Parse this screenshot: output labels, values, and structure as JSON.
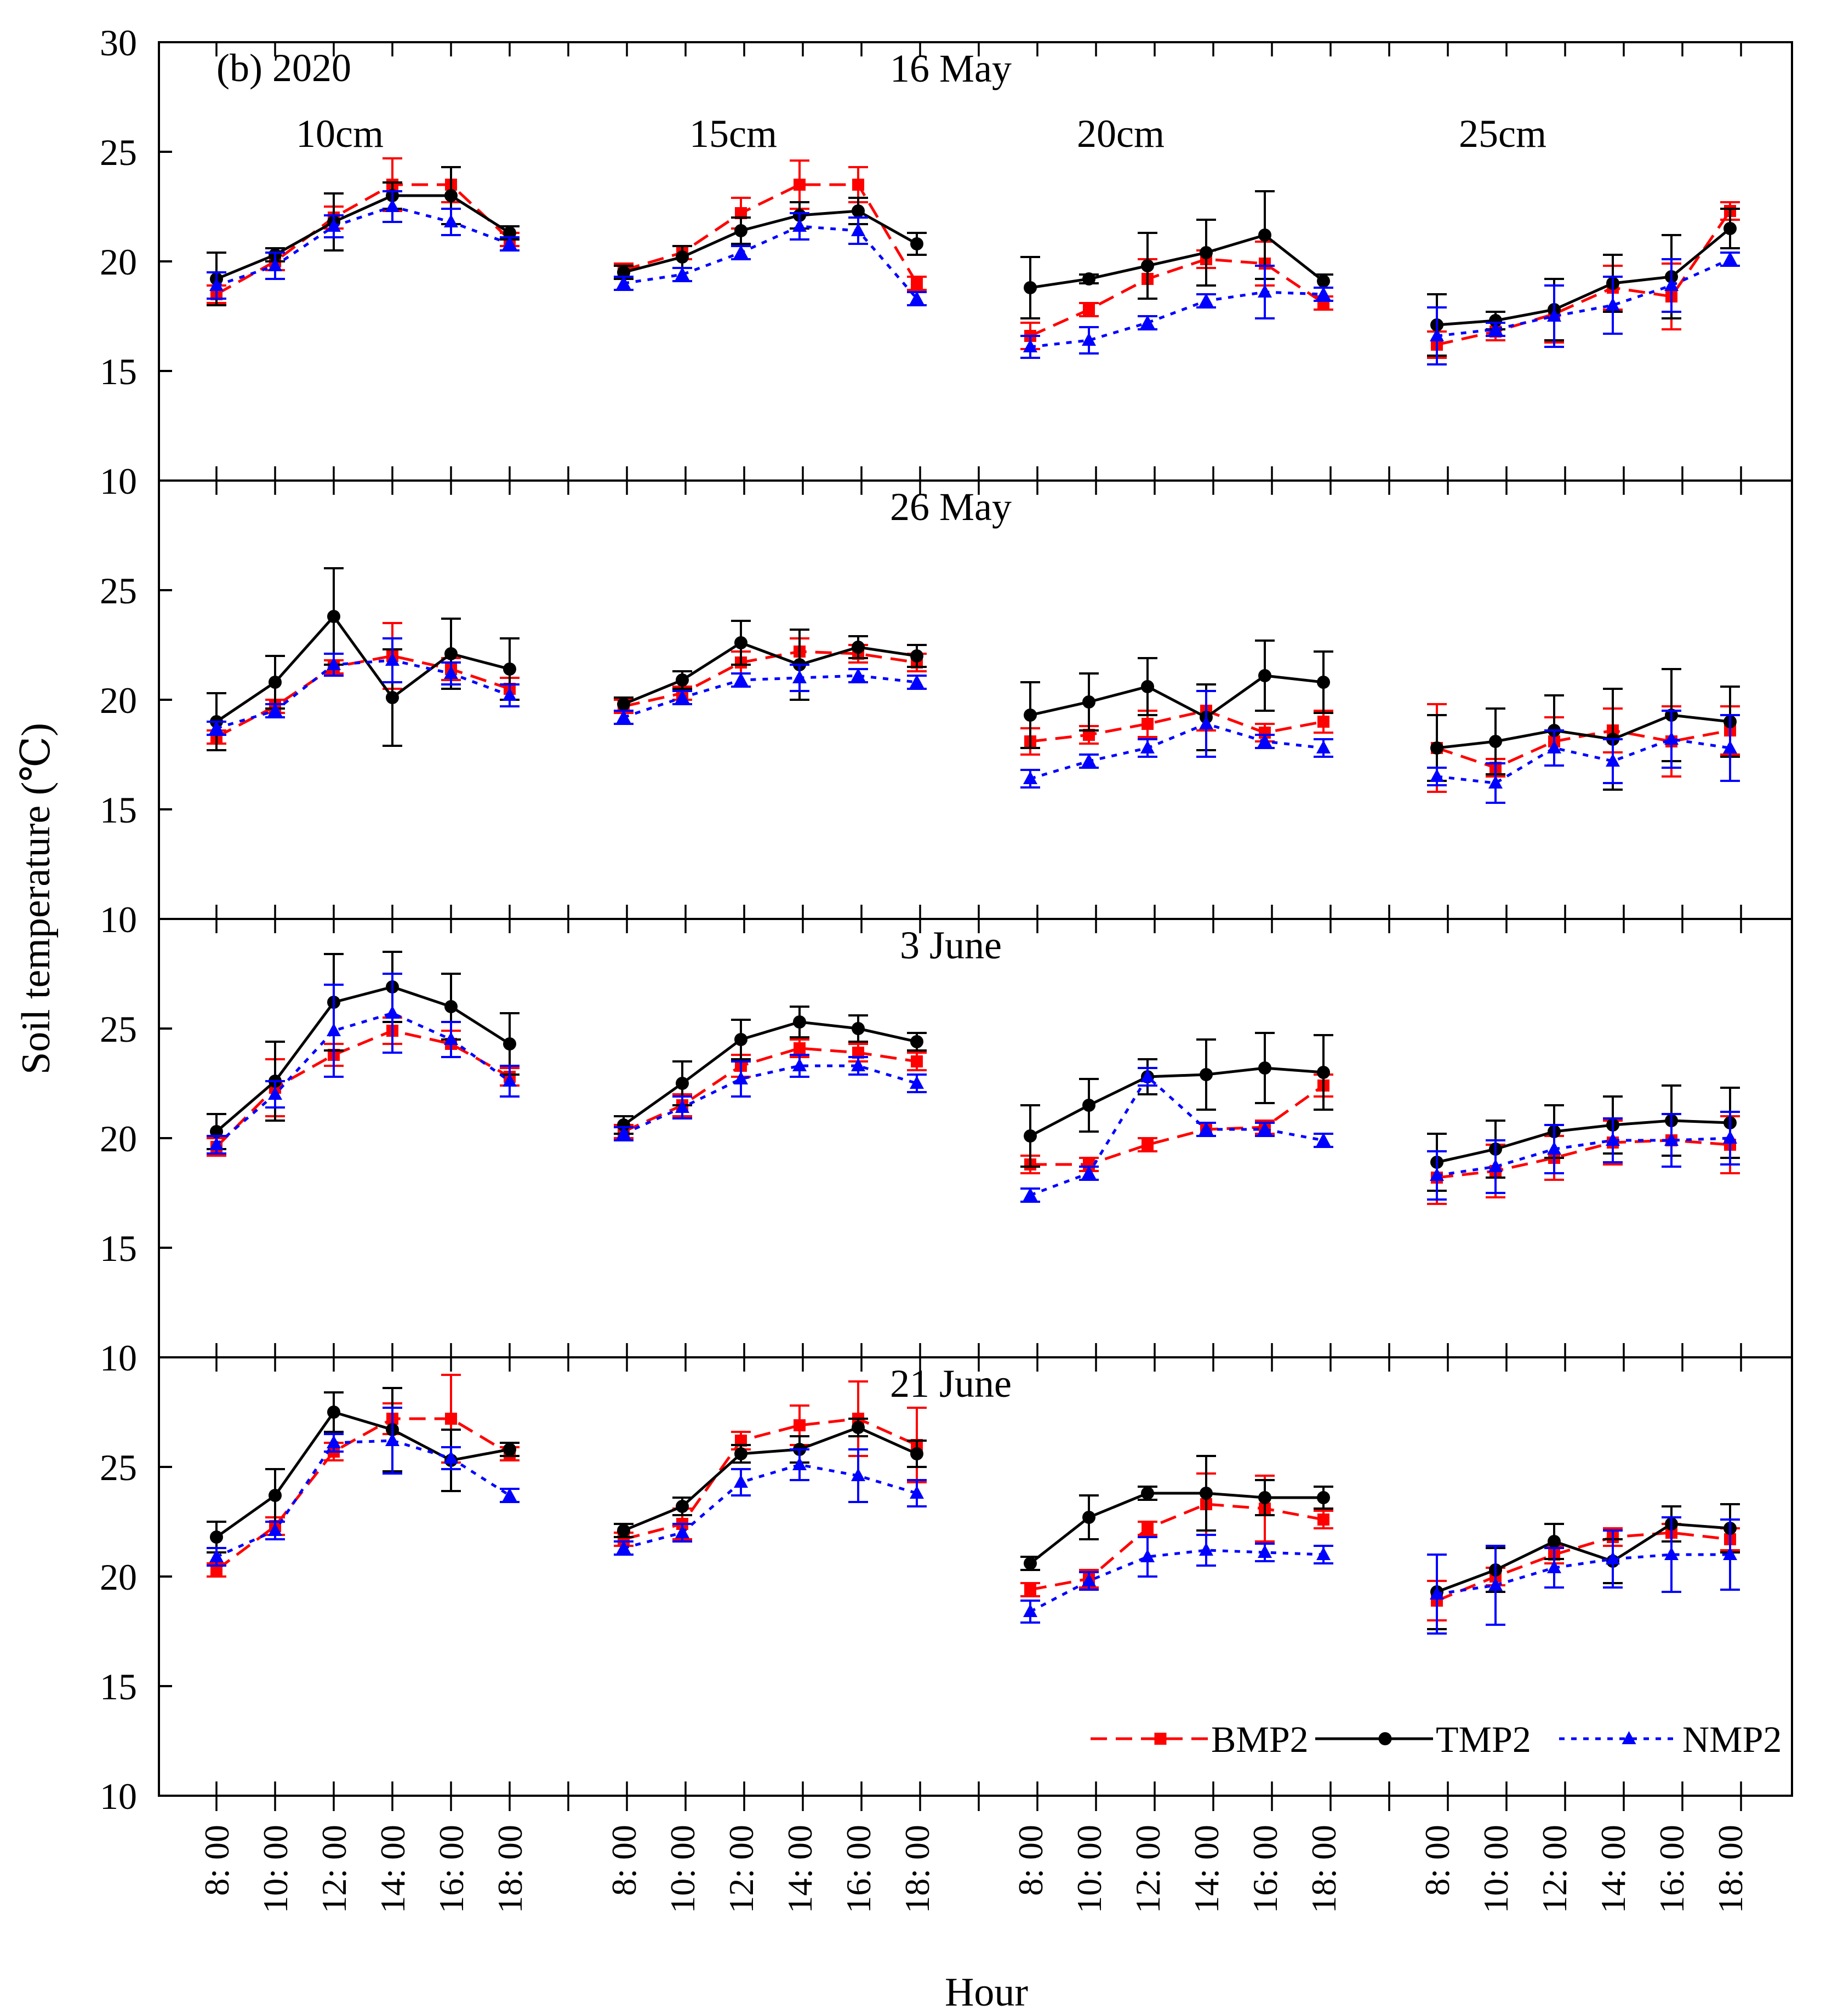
{
  "chart_data": {
    "type": "line",
    "figure_label": "(b) 2020",
    "ylabel": "Soil temperature (℃)",
    "xlabel": "Hour",
    "ylim": [
      10,
      30
    ],
    "y_ticks": [
      10,
      15,
      20,
      25,
      30
    ],
    "time_labels": [
      "8: 00",
      "10: 00",
      "12: 00",
      "14: 00",
      "16: 00",
      "18: 00"
    ],
    "depths": [
      "10cm",
      "15cm",
      "20cm",
      "25cm"
    ],
    "colors": {
      "BMP2": "#ff0000",
      "TMP2": "#000000",
      "NMP2": "#0000ff"
    },
    "legend": [
      {
        "name": "BMP2",
        "label": "BMP2"
      },
      {
        "name": "TMP2",
        "label": "TMP2"
      },
      {
        "name": "NMP2",
        "label": "NMP2"
      }
    ],
    "panels": [
      {
        "date": "16 May",
        "series": {
          "BMP2": [
            [
              18.5,
              20.0,
              22.0,
              23.5,
              23.5,
              21.0
            ],
            [
              19.6,
              20.4,
              22.2,
              23.5,
              23.5,
              19.0
            ],
            [
              16.6,
              17.8,
              19.2,
              20.1,
              19.9,
              18.1
            ],
            [
              16.2,
              16.8,
              17.6,
              18.8,
              18.4,
              22.3
            ]
          ],
          "TMP2": [
            [
              19.2,
              20.3,
              21.8,
              23.0,
              23.0,
              21.3
            ],
            [
              19.5,
              20.2,
              21.4,
              22.1,
              22.3,
              20.8
            ],
            [
              18.8,
              19.2,
              19.8,
              20.4,
              21.2,
              19.1
            ],
            [
              17.1,
              17.3,
              17.8,
              19.0,
              19.3,
              21.5
            ]
          ],
          "NMP2": [
            [
              18.9,
              19.8,
              21.6,
              22.5,
              21.8,
              20.8
            ],
            [
              19.0,
              19.4,
              20.4,
              21.6,
              21.4,
              18.3
            ],
            [
              16.1,
              16.4,
              17.2,
              18.2,
              18.6,
              18.5
            ],
            [
              16.6,
              16.9,
              17.5,
              18.0,
              18.9,
              20.1
            ]
          ]
        },
        "errors": {
          "BMP2": [
            [
              0.4,
              0.4,
              0.5,
              1.2,
              0.8,
              0.3
            ],
            [
              0.3,
              0.3,
              0.7,
              1.1,
              0.8,
              0.3
            ],
            [
              0.6,
              0.3,
              0.9,
              0.4,
              1.0,
              0.3
            ],
            [
              0.6,
              0.4,
              1.3,
              1.0,
              1.5,
              0.4
            ]
          ],
          "TMP2": [
            [
              1.2,
              0.3,
              1.3,
              0.6,
              1.3,
              0.3
            ],
            [
              0.3,
              0.5,
              0.6,
              0.6,
              0.6,
              0.5
            ],
            [
              1.4,
              0.2,
              1.5,
              1.5,
              2.0,
              0.3
            ],
            [
              1.4,
              0.4,
              1.4,
              1.3,
              1.9,
              0.9
            ]
          ],
          "NMP2": [
            [
              0.6,
              0.6,
              0.5,
              0.7,
              0.6,
              0.3
            ],
            [
              0.3,
              0.3,
              0.3,
              0.6,
              0.6,
              0.3
            ],
            [
              0.5,
              0.6,
              0.3,
              0.3,
              1.2,
              0.3
            ],
            [
              1.3,
              0.3,
              1.4,
              1.3,
              1.2,
              0.3
            ]
          ]
        }
      },
      {
        "date": "26 May",
        "series": {
          "BMP2": [
            [
              18.3,
              19.7,
              21.5,
              22.0,
              21.4,
              20.5
            ],
            [
              19.7,
              20.3,
              21.7,
              22.2,
              22.1,
              21.7
            ],
            [
              18.1,
              18.4,
              18.9,
              19.5,
              18.5,
              19.0
            ],
            [
              17.8,
              16.9,
              18.1,
              18.6,
              18.1,
              18.6
            ]
          ],
          "TMP2": [
            [
              19.0,
              20.8,
              23.8,
              20.1,
              22.1,
              21.4
            ],
            [
              19.8,
              20.9,
              22.6,
              21.6,
              22.4,
              22.0
            ],
            [
              19.3,
              19.9,
              20.6,
              19.2,
              21.1,
              20.8
            ],
            [
              17.8,
              18.1,
              18.6,
              18.2,
              19.3,
              19.0
            ]
          ],
          "NMP2": [
            [
              18.7,
              19.5,
              21.6,
              21.8,
              21.2,
              20.2
            ],
            [
              19.2,
              20.1,
              20.9,
              21.0,
              21.1,
              20.8
            ],
            [
              16.4,
              17.2,
              17.8,
              18.9,
              18.1,
              17.8
            ],
            [
              16.5,
              16.2,
              17.8,
              17.2,
              18.2,
              17.8
            ]
          ]
        },
        "errors": {
          "BMP2": [
            [
              0.3,
              0.3,
              0.3,
              1.5,
              0.5,
              0.5
            ],
            [
              0.3,
              0.3,
              0.5,
              0.6,
              0.4,
              0.4
            ],
            [
              0.6,
              0.4,
              0.6,
              0.9,
              0.4,
              0.5
            ],
            [
              2.0,
              0.4,
              1.1,
              1.0,
              1.6,
              1.1
            ]
          ],
          "TMP2": [
            [
              1.3,
              1.2,
              2.2,
              2.2,
              1.6,
              1.4
            ],
            [
              0.3,
              0.4,
              1.0,
              1.6,
              0.5,
              0.5
            ],
            [
              1.5,
              1.3,
              1.3,
              1.5,
              1.6,
              1.4
            ],
            [
              1.5,
              1.5,
              1.6,
              2.3,
              2.1,
              1.6
            ]
          ],
          "NMP2": [
            [
              0.3,
              0.3,
              0.5,
              1.0,
              0.5,
              0.5
            ],
            [
              0.3,
              0.3,
              0.3,
              0.6,
              0.3,
              0.3
            ],
            [
              0.4,
              0.3,
              0.4,
              1.5,
              0.3,
              0.4
            ],
            [
              0.4,
              0.9,
              0.8,
              1.0,
              1.3,
              1.5
            ]
          ]
        }
      },
      {
        "date": "3 June",
        "series": {
          "BMP2": [
            [
              19.6,
              22.3,
              23.8,
              24.9,
              24.3,
              22.8
            ],
            [
              20.3,
              21.5,
              23.3,
              24.1,
              23.9,
              23.5
            ],
            [
              18.8,
              18.8,
              19.7,
              20.4,
              20.5,
              22.4
            ],
            [
              18.2,
              18.5,
              19.1,
              19.8,
              19.9,
              19.7
            ]
          ],
          "TMP2": [
            [
              20.3,
              22.6,
              26.2,
              26.9,
              26.0,
              24.3
            ],
            [
              20.6,
              22.5,
              24.5,
              25.3,
              25.0,
              24.4
            ],
            [
              20.1,
              21.5,
              22.8,
              22.9,
              23.2,
              23.0
            ],
            [
              18.9,
              19.5,
              20.3,
              20.6,
              20.8,
              20.7
            ]
          ],
          "NMP2": [
            [
              19.7,
              22.0,
              24.9,
              25.7,
              24.5,
              22.6
            ],
            [
              20.2,
              21.4,
              22.7,
              23.3,
              23.3,
              22.5
            ],
            [
              17.4,
              18.4,
              22.8,
              20.4,
              20.4,
              19.9
            ],
            [
              18.3,
              18.7,
              19.5,
              19.9,
              19.9,
              20.0
            ]
          ]
        },
        "errors": {
          "BMP2": [
            [
              0.4,
              1.3,
              0.5,
              0.6,
              0.6,
              0.4
            ],
            [
              0.3,
              0.5,
              0.5,
              0.4,
              0.4,
              0.4
            ],
            [
              0.4,
              0.3,
              0.3,
              0.3,
              0.3,
              0.5
            ],
            [
              1.2,
              1.2,
              1.0,
              1.0,
              1.2,
              1.3
            ]
          ],
          "TMP2": [
            [
              0.8,
              1.8,
              2.2,
              1.6,
              1.5,
              1.4
            ],
            [
              0.4,
              1.0,
              0.9,
              0.7,
              0.6,
              0.4
            ],
            [
              1.4,
              1.2,
              0.8,
              1.6,
              1.6,
              1.7
            ],
            [
              1.3,
              1.3,
              1.2,
              1.3,
              1.6,
              1.6
            ]
          ],
          "NMP2": [
            [
              0.4,
              0.6,
              2.1,
              1.8,
              0.8,
              0.7
            ],
            [
              0.3,
              0.5,
              0.8,
              0.5,
              0.4,
              0.4
            ],
            [
              0.3,
              0.3,
              0.4,
              0.3,
              0.3,
              0.3
            ],
            [
              1.1,
              1.2,
              1.1,
              1.0,
              1.2,
              1.2
            ]
          ]
        }
      },
      {
        "date": "21 June",
        "series": {
          "BMP2": [
            [
              20.3,
              22.3,
              25.7,
              27.2,
              27.2,
              25.6
            ],
            [
              21.7,
              22.4,
              26.2,
              26.9,
              27.2,
              26.0
            ],
            [
              19.4,
              19.9,
              22.2,
              23.3,
              23.1,
              22.6
            ],
            [
              18.9,
              20.0,
              21.0,
              21.8,
              22.0,
              21.7
            ]
          ],
          "TMP2": [
            [
              21.8,
              23.7,
              27.5,
              26.7,
              25.3,
              25.8
            ],
            [
              22.1,
              23.2,
              25.6,
              25.8,
              26.8,
              25.6
            ],
            [
              20.6,
              22.7,
              23.8,
              23.8,
              23.6,
              23.6
            ],
            [
              19.3,
              20.3,
              21.6,
              20.7,
              22.4,
              22.2
            ]
          ],
          "NMP2": [
            [
              20.9,
              22.1,
              26.1,
              26.2,
              25.4,
              23.7
            ],
            [
              21.3,
              22.0,
              24.3,
              25.1,
              24.6,
              23.8
            ],
            [
              18.4,
              19.8,
              20.9,
              21.2,
              21.1,
              21.0
            ],
            [
              19.2,
              19.6,
              20.4,
              20.8,
              21.0,
              21.0
            ]
          ]
        },
        "errors": {
          "BMP2": [
            [
              0.3,
              0.4,
              0.4,
              0.7,
              2.0,
              0.3
            ],
            [
              0.3,
              0.7,
              0.4,
              0.9,
              1.7,
              1.7
            ],
            [
              0.3,
              0.4,
              0.3,
              1.4,
              1.5,
              0.4
            ],
            [
              0.9,
              0.4,
              0.4,
              0.4,
              0.4,
              0.5
            ]
          ],
          "TMP2": [
            [
              0.7,
              1.2,
              0.9,
              1.9,
              1.4,
              0.3
            ],
            [
              0.3,
              0.4,
              0.4,
              0.6,
              0.4,
              0.6
            ],
            [
              0.3,
              1.0,
              0.3,
              1.7,
              0.8,
              0.5
            ],
            [
              1.7,
              1.0,
              0.8,
              1.0,
              0.8,
              1.1
            ]
          ],
          "NMP2": [
            [
              0.4,
              0.4,
              0.4,
              1.5,
              0.5,
              0.3
            ],
            [
              0.3,
              0.4,
              0.6,
              0.7,
              1.2,
              0.6
            ],
            [
              0.5,
              0.4,
              0.9,
              0.7,
              0.4,
              0.4
            ],
            [
              1.8,
              1.8,
              0.9,
              1.3,
              1.7,
              1.6
            ]
          ]
        }
      }
    ]
  }
}
